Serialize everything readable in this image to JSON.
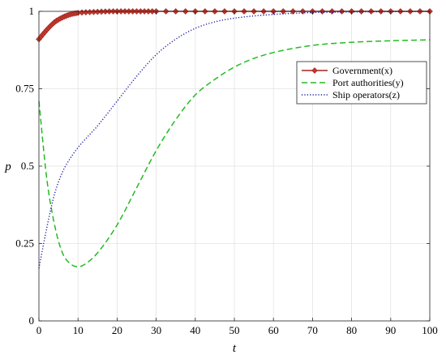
{
  "chart_data": {
    "type": "line",
    "xlabel": "t",
    "ylabel": "p",
    "xlim": [
      0,
      100
    ],
    "ylim": [
      0,
      1
    ],
    "x_ticks": [
      "0",
      "10",
      "20",
      "30",
      "40",
      "50",
      "60",
      "70",
      "80",
      "90",
      "100"
    ],
    "y_ticks": [
      "0",
      "0.25",
      "0.5",
      "0.75",
      "1"
    ],
    "grid": true,
    "legend_position": "top-right",
    "series": [
      {
        "name": "Government(x)",
        "color": "#a3231f",
        "marker_color": "#c0392b",
        "style": "solid-diamond-markers",
        "x": [
          0,
          2,
          4,
          6,
          8,
          10,
          14,
          20,
          30,
          100
        ],
        "values": [
          0.91,
          0.94,
          0.965,
          0.98,
          0.99,
          0.995,
          0.998,
          1.0,
          1.0,
          1.0
        ]
      },
      {
        "name": "Port authorities(y)",
        "color": "#22bb22",
        "style": "dashed",
        "x": [
          0,
          2,
          4,
          6,
          8,
          10,
          12,
          15,
          20,
          25,
          30,
          35,
          40,
          45,
          50,
          55,
          60,
          70,
          80,
          90,
          100
        ],
        "values": [
          0.71,
          0.46,
          0.31,
          0.22,
          0.185,
          0.175,
          0.185,
          0.22,
          0.31,
          0.43,
          0.55,
          0.65,
          0.73,
          0.78,
          0.82,
          0.848,
          0.867,
          0.89,
          0.9,
          0.905,
          0.908
        ]
      },
      {
        "name": "Ship operators(z)",
        "color": "#1a1aa8",
        "style": "dotted",
        "x": [
          0,
          2,
          4,
          6,
          8,
          10,
          15,
          20,
          25,
          30,
          35,
          40,
          45,
          50,
          60,
          70,
          80,
          90,
          100
        ],
        "values": [
          0.17,
          0.3,
          0.41,
          0.48,
          0.525,
          0.56,
          0.63,
          0.71,
          0.79,
          0.86,
          0.91,
          0.945,
          0.966,
          0.978,
          0.99,
          0.996,
          0.998,
          0.999,
          1.0
        ]
      }
    ]
  }
}
